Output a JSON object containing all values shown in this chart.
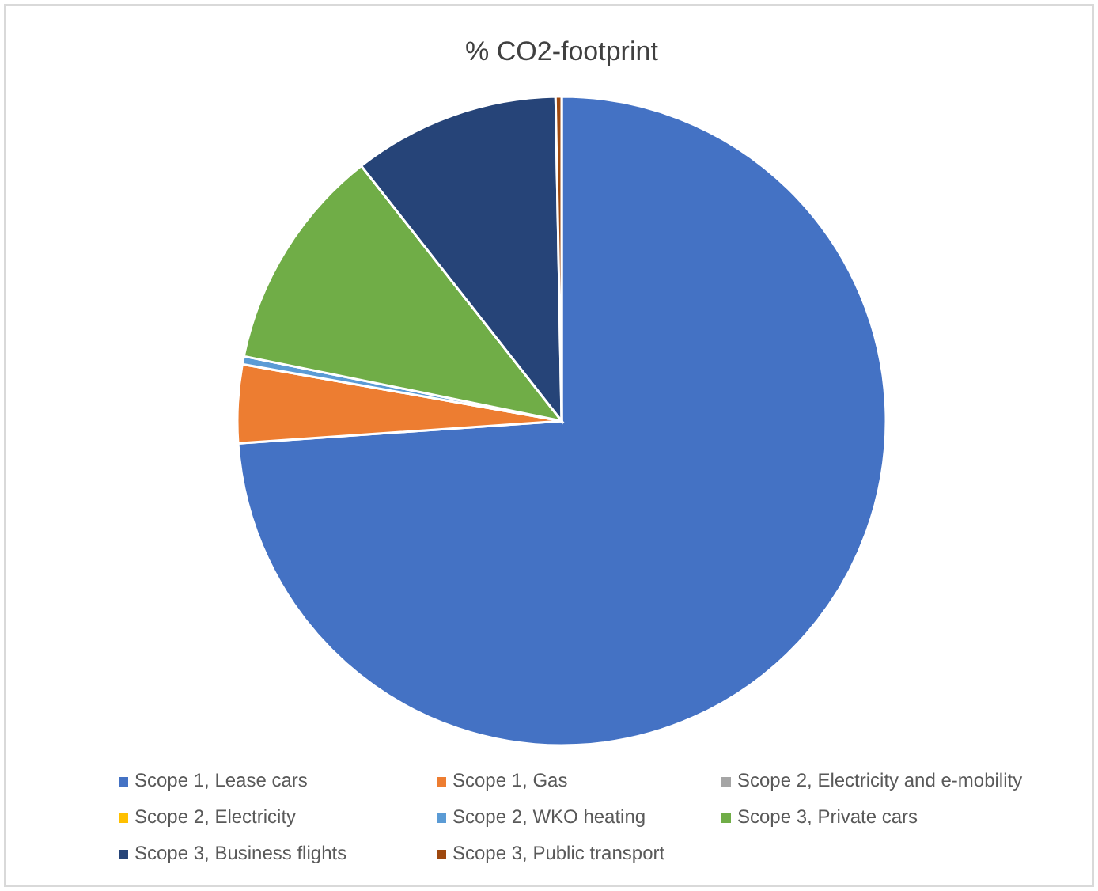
{
  "chart_data": {
    "type": "pie",
    "title": "% CO2-footprint",
    "categories": [
      "Scope 1, Lease cars",
      "Scope 1, Gas",
      "Scope 2, Electricity and e-mobility",
      "Scope 2, Electricity",
      "Scope 2, WKO heating",
      "Scope 3, Private cars",
      "Scope 3, Business flights",
      "Scope 3, Public transport"
    ],
    "values": [
      73.9,
      3.9,
      null,
      null,
      0.4,
      11.2,
      10.3,
      0.3
    ],
    "colors": [
      "#4472c4",
      "#ed7d31",
      "#a5a5a5",
      "#ffc000",
      "#5b9bd5",
      "#70ad47",
      "#264478",
      "#9e480e"
    ],
    "legend": "bottom"
  }
}
